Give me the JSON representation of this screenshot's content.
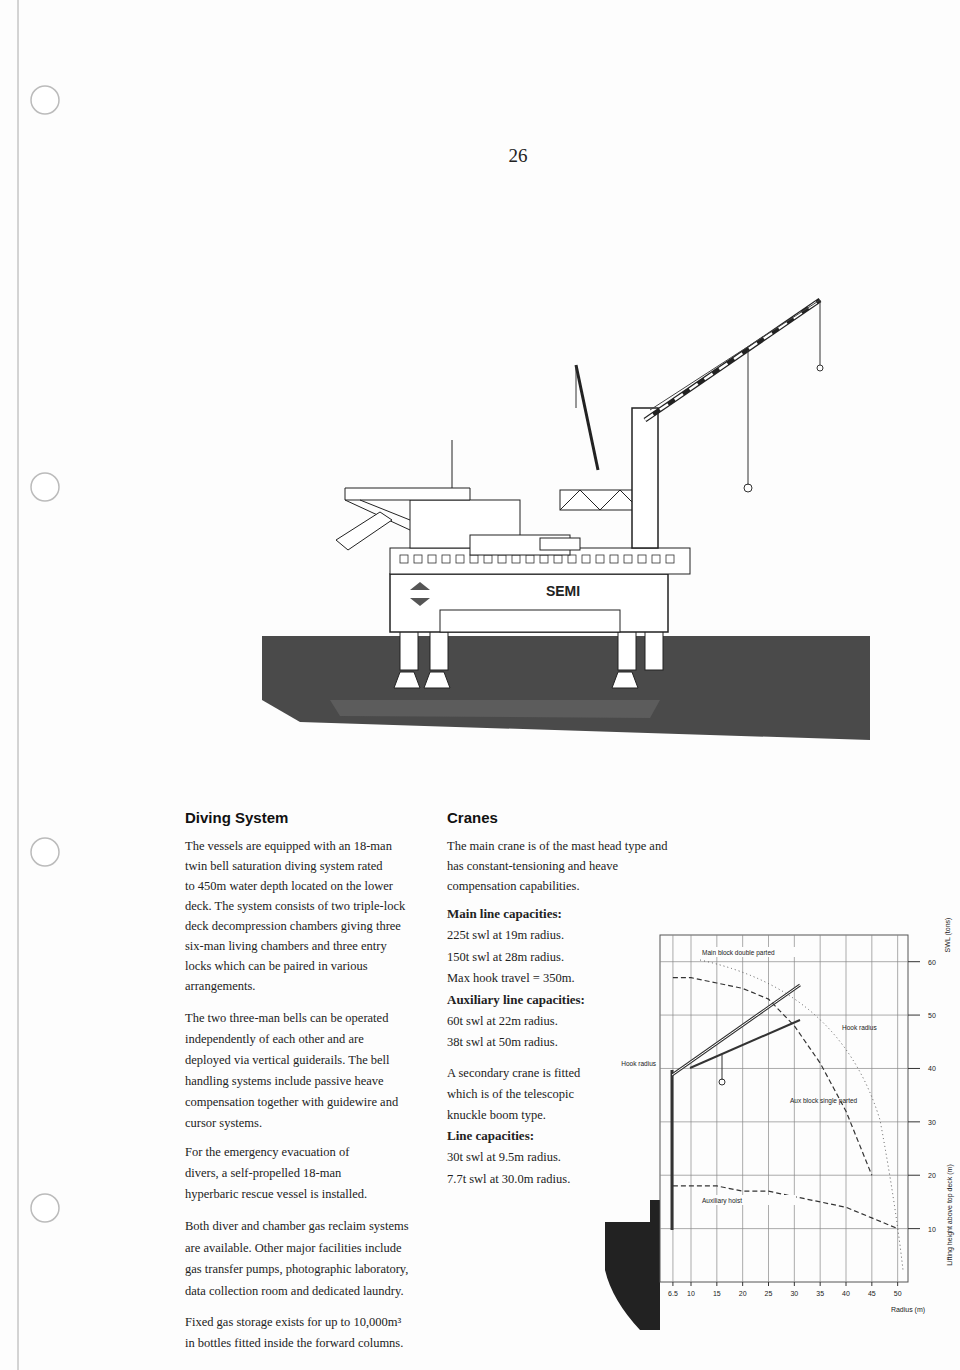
{
  "page_number": "26",
  "illustration": {
    "hull_label": "SEMI"
  },
  "diving_system": {
    "heading": "Diving System",
    "paragraphs": [
      [
        "The vessels are equipped with an 18-man",
        "twin bell saturation diving system rated",
        "to 450m water depth located on the lower",
        "deck. The system consists of two triple-lock",
        "deck decompression chambers giving three",
        "six-man living chambers and three entry",
        "locks which can be paired in various",
        "arrangements."
      ],
      [
        "The two three-man bells can be operated",
        "independently of each other and are",
        "deployed via vertical guiderails. The bell",
        "handling systems include passive heave",
        "compensation together with guidewire and",
        "cursor systems."
      ],
      [
        "For the emergency evacuation of",
        "divers, a self-propelled 18-man",
        "hyperbaric rescue vessel is installed."
      ],
      [
        "Both diver and chamber gas reclaim systems",
        "are available. Other major facilities include",
        "gas transfer pumps, photographic laboratory,",
        "data collection room and dedicated laundry."
      ],
      [
        "Fixed gas storage exists for up to 10,000m³",
        "in bottles fitted inside the forward columns."
      ]
    ]
  },
  "cranes": {
    "heading": "Cranes",
    "intro": [
      "The main crane is of the mast head type and",
      "has constant-tensioning and heave",
      "compensation capabilities."
    ],
    "main_line": {
      "heading": "Main line capacities:",
      "lines": [
        "225t swl at 19m radius.",
        "150t swl at 28m radius.",
        "Max hook travel = 350m."
      ]
    },
    "auxiliary_line": {
      "heading": "Auxiliary line capacities:",
      "lines": [
        "60t swl at 22m radius.",
        "38t swl at 50m radius."
      ]
    },
    "secondary_intro": [
      "A secondary crane is fitted",
      "which is of the telescopic",
      "knuckle boom type."
    ],
    "secondary_line": {
      "heading": "Line capacities:",
      "lines": [
        "30t swl at 9.5m radius.",
        "7.7t swl at 30.0m radius."
      ]
    }
  },
  "chart_data": {
    "type": "line",
    "x_label": "Radius (m)",
    "y_label": "SWL (tons)",
    "y2_label": "Lifting height above top deck (m)",
    "x": [
      6.5,
      10,
      15,
      20,
      25,
      30,
      35,
      40,
      45,
      50
    ],
    "series": [
      {
        "name": "Main block double parted",
        "color": "#333333",
        "line_style": "dashed",
        "values": [
          57,
          57,
          56,
          55,
          53,
          48,
          41,
          32,
          20,
          null
        ]
      },
      {
        "name": "Auxiliary hoist",
        "color": "#333333",
        "line_style": "dashed",
        "values": [
          18,
          18,
          18,
          17,
          17,
          16,
          15,
          14,
          12,
          10
        ]
      }
    ],
    "annotations": [
      "Hook radius",
      "Hook radius",
      "Aux block single parted"
    ],
    "xlim": [
      4,
      52
    ],
    "xticks": [
      6.5,
      10,
      15,
      20,
      25,
      30,
      35,
      40,
      45,
      50
    ],
    "ylim": [
      0,
      65
    ],
    "yticks": [
      10,
      20,
      30,
      40,
      50,
      60
    ],
    "grid": true
  }
}
